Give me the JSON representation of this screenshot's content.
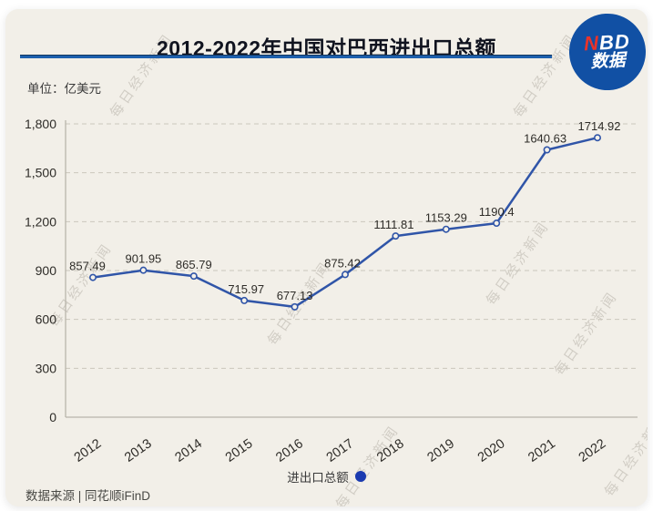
{
  "header": {
    "title": "2012-2022年中国对巴西进出口总额",
    "logo": {
      "accent_letter": "N",
      "rest_letters": "BD",
      "subtitle": "数据"
    }
  },
  "chart_meta": {
    "unit_label": "单位：亿美元"
  },
  "legend": {
    "label": "进出口总额"
  },
  "footer": {
    "source": "数据来源 | 同花顺iFinD"
  },
  "watermark": {
    "text": "每日经济新闻"
  },
  "colors": {
    "card_bg": "#f2efe8",
    "title_underline": "#1d5fad",
    "line": "#3055a8",
    "marker_fill": "#f4f1ea",
    "legend_dot": "#1a3ab0",
    "logo_bg": "#1150a4",
    "logo_accent": "#e8332a",
    "grid": "#cbc7bd",
    "axis": "#b9b5ab",
    "text": "#2e2c28"
  },
  "chart_data": {
    "type": "line",
    "title": "2012-2022年中国对巴西进出口总额",
    "x": [
      "2012",
      "2013",
      "2014",
      "2015",
      "2016",
      "2017",
      "2018",
      "2019",
      "2020",
      "2021",
      "2022"
    ],
    "series": [
      {
        "name": "进出口总额",
        "values": [
          857.49,
          901.95,
          865.79,
          715.97,
          677.13,
          875.42,
          1111.81,
          1153.29,
          1190.4,
          1640.63,
          1714.92
        ],
        "labels": [
          "857.49",
          "901.95",
          "865.79",
          "715.97",
          "677.13",
          "875.42",
          "1111.81",
          "1153.29",
          "1190.4",
          "1640.63",
          "1714.92"
        ]
      }
    ],
    "ylabel": "亿美元",
    "ylim": [
      0,
      1800
    ],
    "yticks": [
      0,
      300,
      600,
      900,
      1200,
      1500,
      1800
    ],
    "grid": "horizontal-dashed",
    "legend_position": "bottom",
    "marker": "open-circle"
  }
}
